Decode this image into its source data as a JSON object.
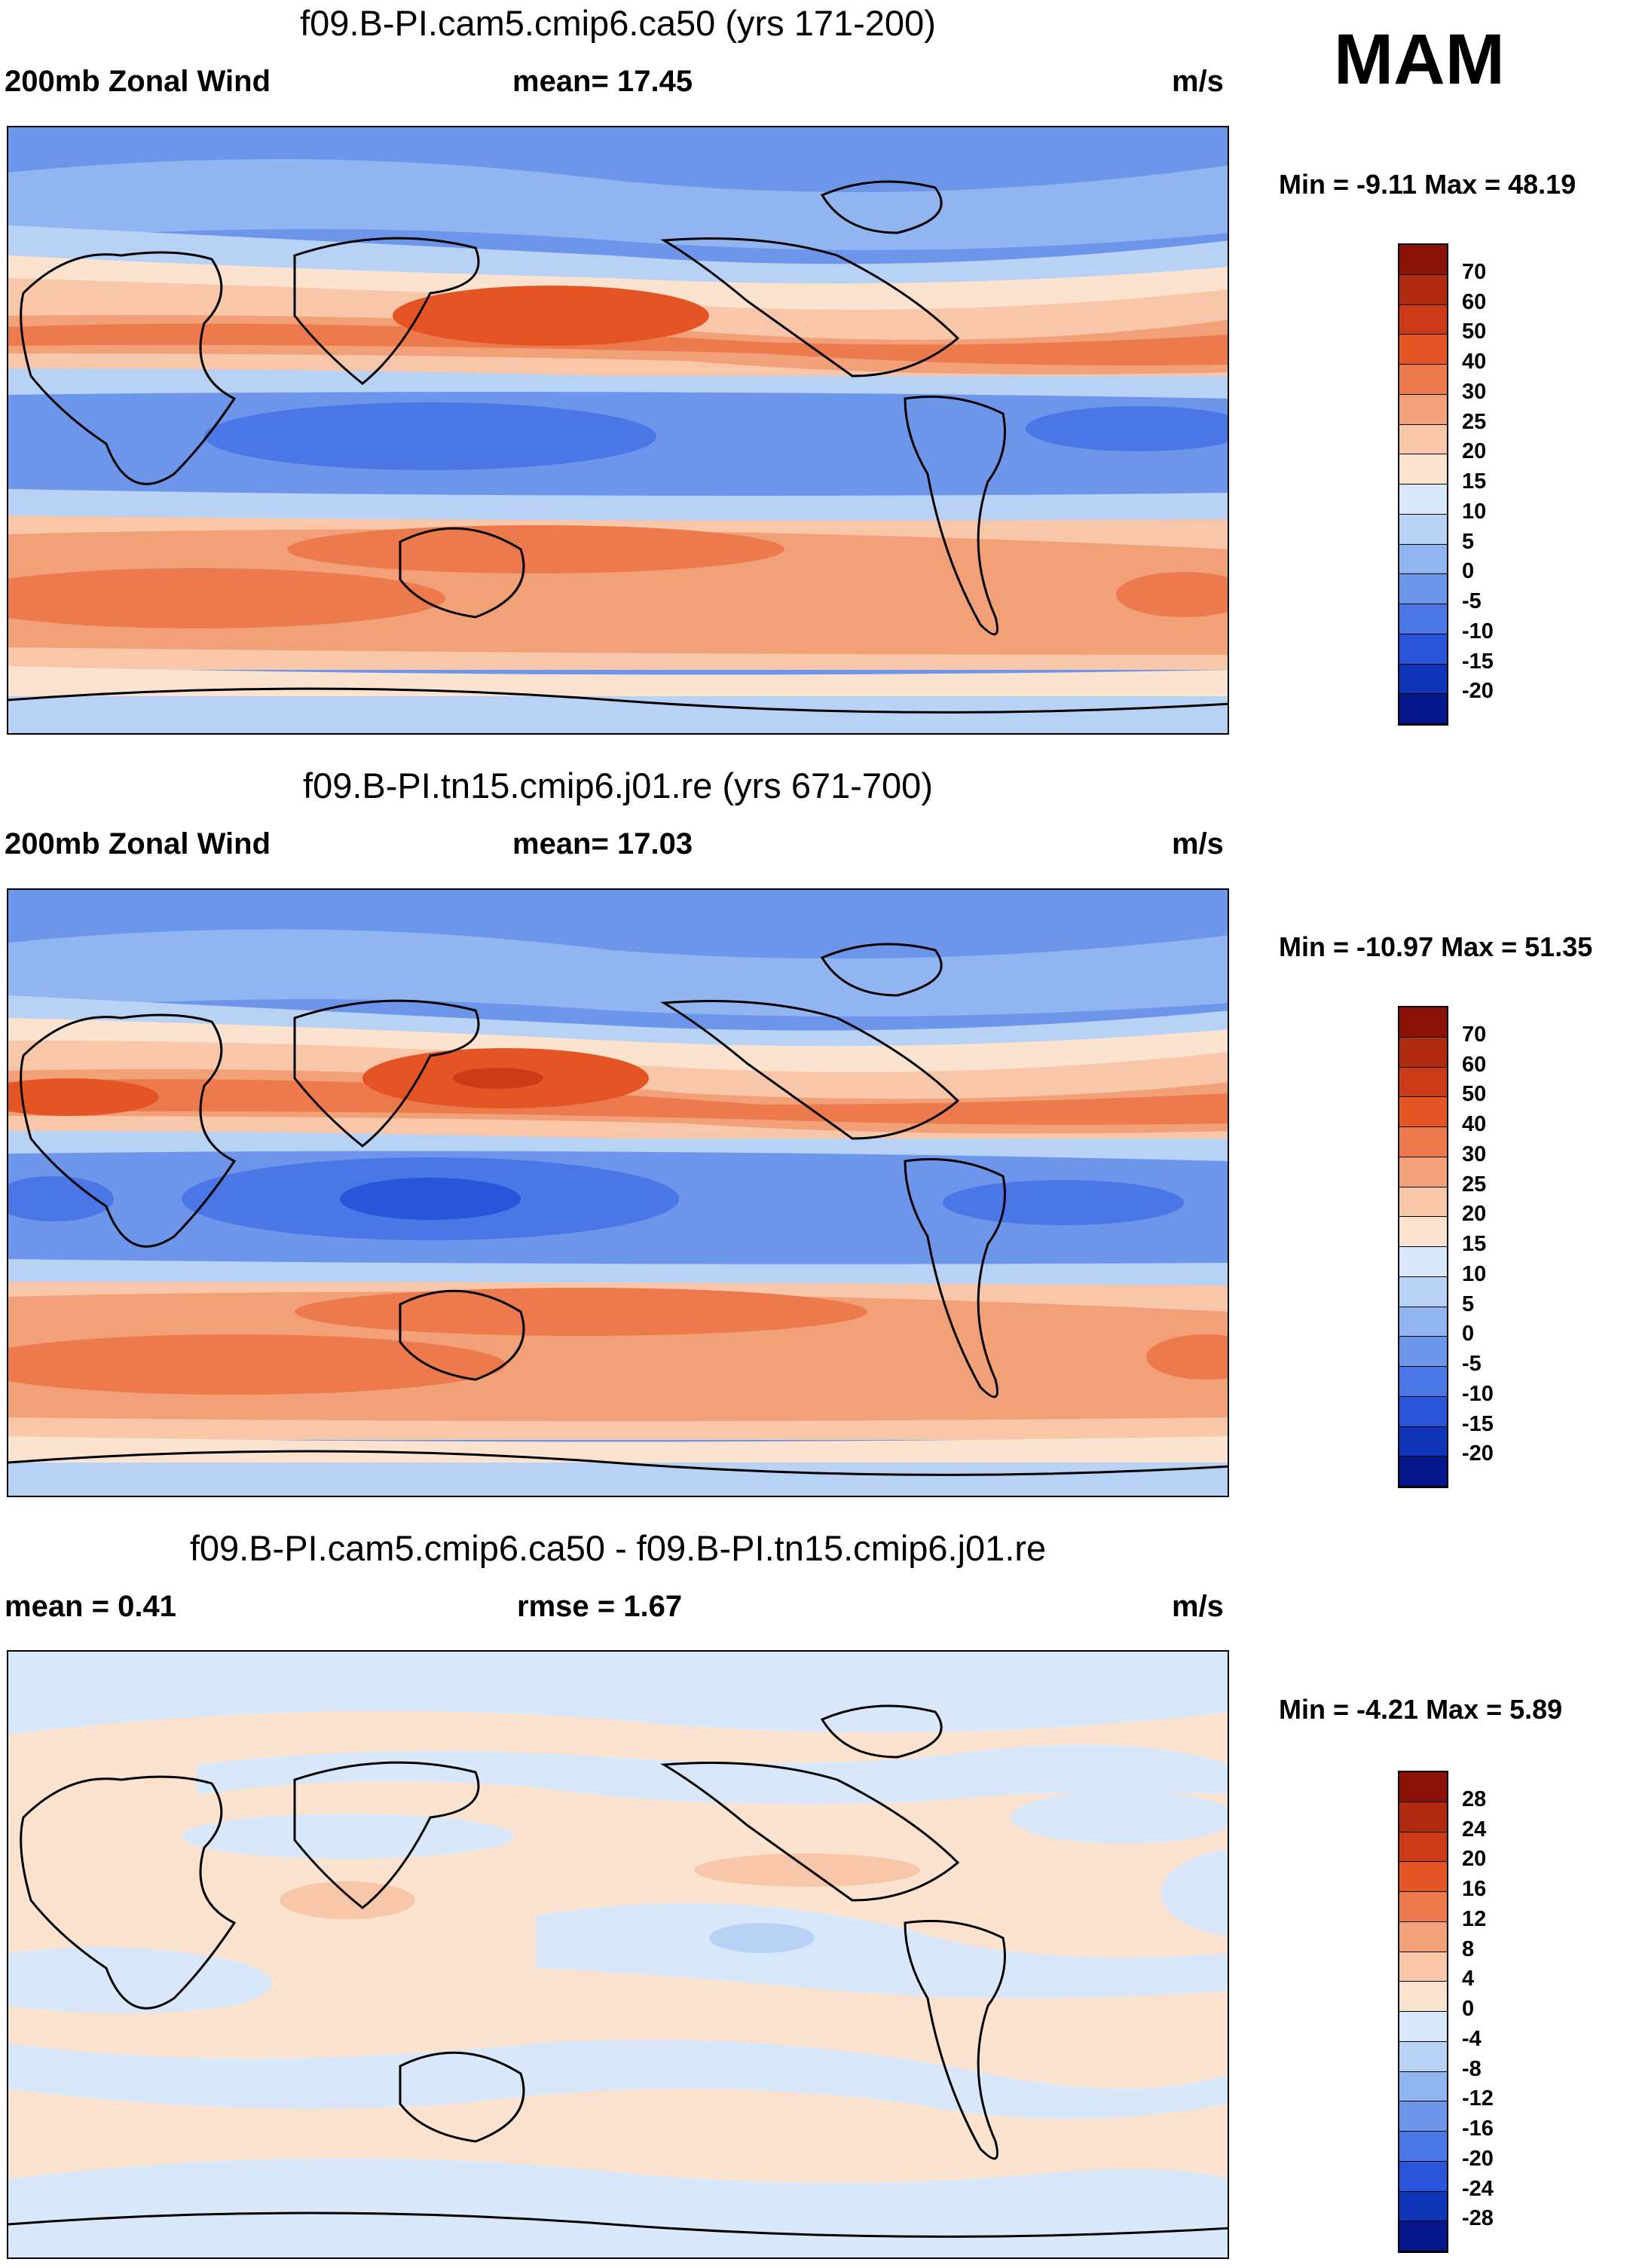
{
  "season": "MAM",
  "colors": {
    "pos": [
      "#fbe3d0",
      "#f8c6a8",
      "#f2a078",
      "#ec7a4d",
      "#e45425",
      "#cc3a17",
      "#b02a10",
      "#8a1208"
    ],
    "neg": [
      "#d8e8fa",
      "#b8d2f6",
      "#91b5f0",
      "#6d96ea",
      "#4b77e6",
      "#2a55db",
      "#1034b8",
      "#05158a"
    ]
  },
  "panels": [
    {
      "id": "p1",
      "title": "f09.B-PI.cam5.cmip6.ca50 (yrs 171-200)",
      "left_label": "200mb Zonal Wind",
      "center_label": "mean=  17.45",
      "units": "m/s",
      "minmax": "Min =  -9.11 Max =  48.19",
      "colorbar": [
        "70",
        "60",
        "50",
        "40",
        "30",
        "25",
        "20",
        "15",
        "10",
        "5",
        "0",
        "-5",
        "-10",
        "-15",
        "-20"
      ]
    },
    {
      "id": "p2",
      "title": "f09.B-PI.tn15.cmip6.j01.re (yrs 671-700)",
      "left_label": "200mb Zonal Wind",
      "center_label": "mean=  17.03",
      "units": "m/s",
      "minmax": "Min = -10.97 Max =  51.35",
      "colorbar": [
        "70",
        "60",
        "50",
        "40",
        "30",
        "25",
        "20",
        "15",
        "10",
        "5",
        "0",
        "-5",
        "-10",
        "-15",
        "-20"
      ]
    },
    {
      "id": "p3",
      "title": "f09.B-PI.cam5.cmip6.ca50 - f09.B-PI.tn15.cmip6.j01.re",
      "left_label": "mean =   0.41",
      "center_label": "rmse =   1.67",
      "units": "m/s",
      "minmax": "Min =  -4.21 Max =   5.89",
      "colorbar": [
        "28",
        "24",
        "20",
        "16",
        "12",
        "8",
        "4",
        "0",
        "-4",
        "-8",
        "-12",
        "-16",
        "-20",
        "-24",
        "-28"
      ]
    }
  ]
}
